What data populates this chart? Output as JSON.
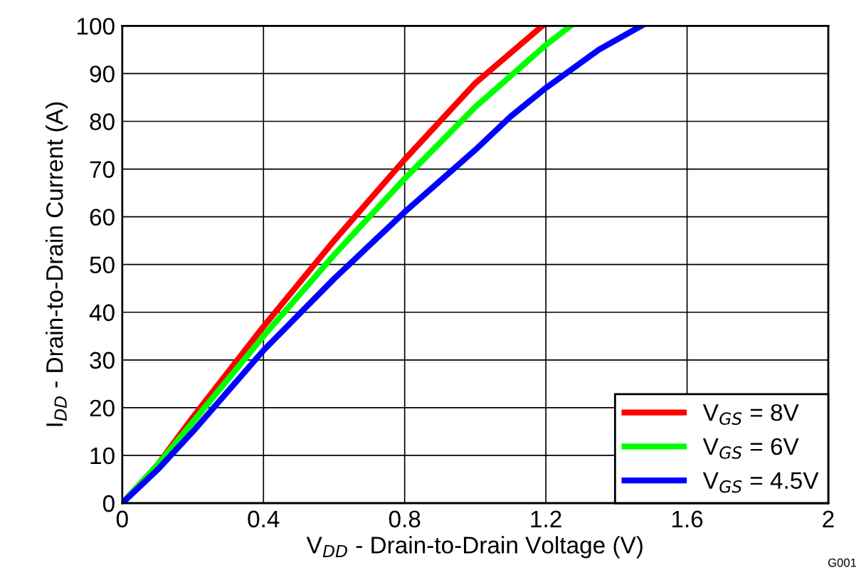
{
  "chart_data": {
    "type": "line",
    "xlabel": "V$_{DD}$ - Drain-to-Drain Voltage (V)",
    "ylabel": "I$_{DD}$ - Drain-to-Drain Current (A)",
    "annotations": [
      "G001"
    ],
    "xlim": [
      0,
      2
    ],
    "ylim": [
      0,
      100
    ],
    "xticks": [
      0,
      0.4,
      0.8,
      1.2,
      1.6,
      2
    ],
    "yticks": [
      0,
      10,
      20,
      30,
      40,
      50,
      60,
      70,
      80,
      90,
      100
    ],
    "grid": true,
    "legend": "bottom right",
    "marker": "none",
    "line_style": "solid",
    "series": [
      {
        "name": "V$_{GS}$ = 8V",
        "color": "#ff0000",
        "x": [
          0,
          0.1,
          0.2,
          0.4,
          0.6,
          0.8,
          1.0,
          1.19
        ],
        "values": [
          0,
          8,
          18,
          37,
          55,
          72,
          88,
          100
        ]
      },
      {
        "name": "V$_{GS}$ = 6V",
        "color": "#00ff00",
        "x": [
          0,
          0.1,
          0.2,
          0.4,
          0.6,
          0.8,
          1.0,
          1.2,
          1.27
        ],
        "values": [
          0,
          8,
          17,
          35,
          52,
          68,
          83,
          96,
          100
        ]
      },
      {
        "name": "V$_{GS}$ = 4.5V",
        "color": "#0000ff",
        "x": [
          0,
          0.1,
          0.2,
          0.4,
          0.6,
          0.8,
          1.0,
          1.1,
          1.2,
          1.35,
          1.47
        ],
        "values": [
          0,
          7,
          15,
          32,
          47,
          61,
          74,
          81,
          87,
          95,
          100
        ]
      }
    ]
  }
}
